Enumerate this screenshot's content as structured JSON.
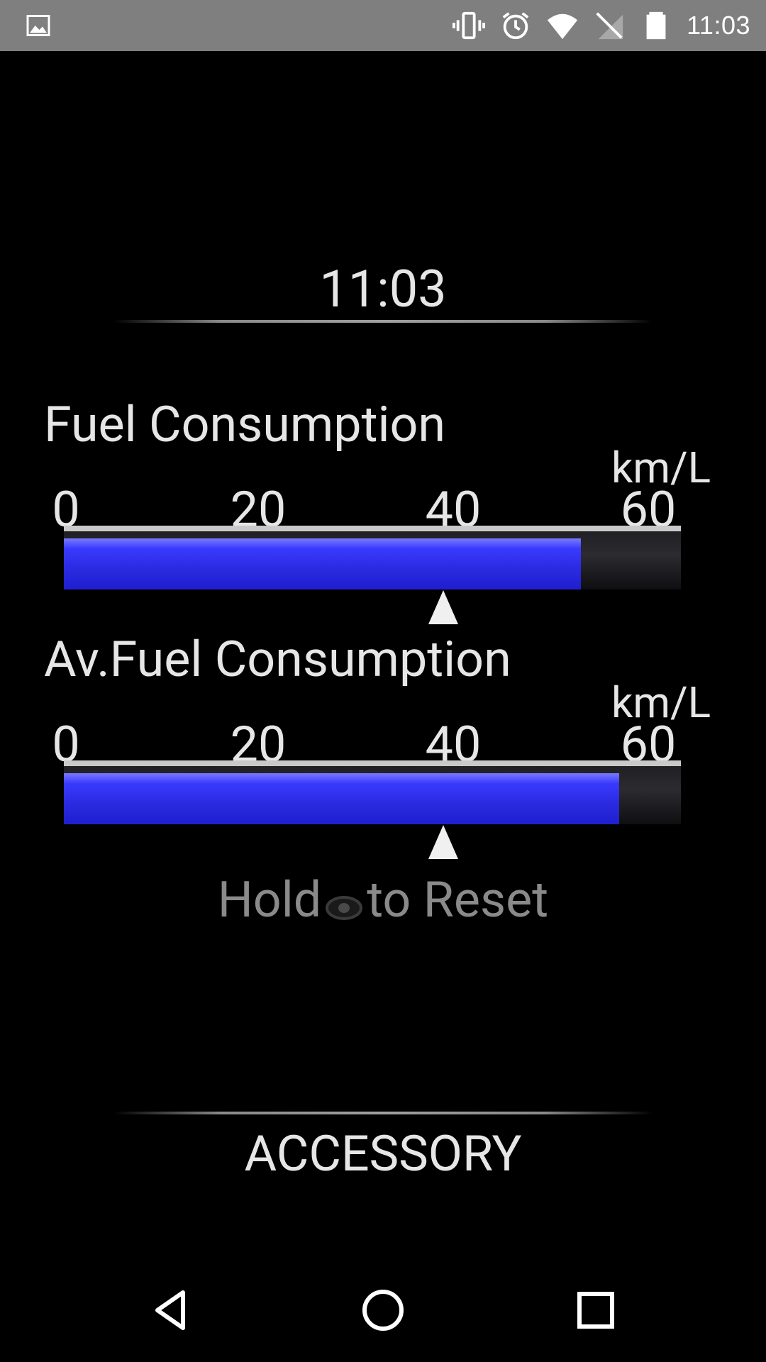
{
  "status_bar": {
    "time": "11:03",
    "icons": [
      "image-icon",
      "vibrate-icon",
      "alarm-icon",
      "wifi-icon",
      "no-sim-icon",
      "battery-icon"
    ]
  },
  "clock": {
    "time": "11:03"
  },
  "fuel_consumption": {
    "title": "Fuel Consumption",
    "unit": "km/L",
    "ticks": [
      "0",
      "20",
      "40",
      "60"
    ],
    "value_fraction": 0.838
  },
  "av_fuel_consumption": {
    "title": "Av.Fuel Consumption",
    "unit": "km/L",
    "ticks": [
      "0",
      "20",
      "40",
      "60"
    ],
    "value_fraction": 0.9
  },
  "reset": {
    "hold": "Hold",
    "to_reset": "to Reset",
    "icon": "eye-icon"
  },
  "footer": {
    "label": "ACCESSORY"
  },
  "nav": {
    "back_icon": "back-icon",
    "home_icon": "home-icon",
    "recents_icon": "recents-icon"
  },
  "colors": {
    "status_bar": "#7f7f7f",
    "background": "#000000",
    "bar_fill": "#2a2ae0",
    "text": "#e6e6e6",
    "muted_text": "#8a8a8a"
  }
}
